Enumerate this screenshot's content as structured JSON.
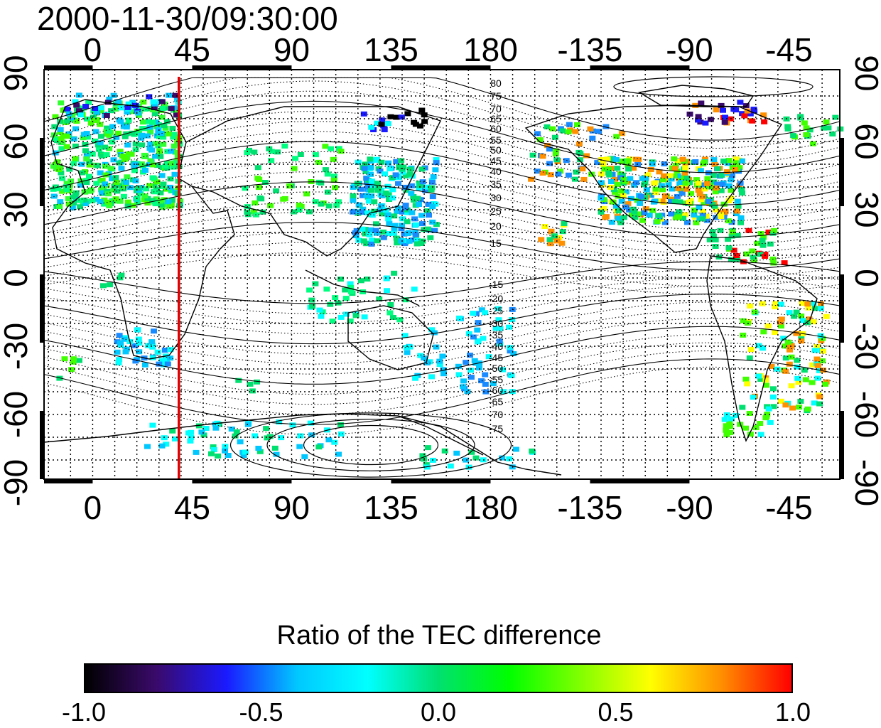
{
  "title": "2000-11-30/09:30:00",
  "map": {
    "x_ticks": [
      "0",
      "45",
      "90",
      "135",
      "180",
      "-135",
      "-90",
      "-45"
    ],
    "y_ticks": [
      "90",
      "60",
      "30",
      "0",
      "-30",
      "-60",
      "-90"
    ],
    "contour_labels_north": [
      "80",
      "75",
      "70",
      "65",
      "60",
      "55",
      "50",
      "45",
      "40",
      "35",
      "30",
      "25",
      "20",
      "15"
    ],
    "contour_labels_south": [
      "-15",
      "-20",
      "-25",
      "-30",
      "-35",
      "-40",
      "-45",
      "-50",
      "-55",
      "-60",
      "-65",
      "-70",
      "-75"
    ],
    "south_cap_labels": [
      "70",
      "75"
    ],
    "terminator_longitude": 39,
    "terminator_color": "#e00000"
  },
  "colorbar": {
    "title": "Ratio of the TEC difference",
    "tick_labels": [
      "-1.0",
      "-0.5",
      "0.0",
      "0.5",
      "1.0"
    ],
    "range": [
      -1.0,
      1.0
    ],
    "colors": [
      "#000000",
      "#3a0a6a",
      "#1a1aff",
      "#00c8ff",
      "#00ffff",
      "#00e070",
      "#00ff00",
      "#80ff00",
      "#ffff00",
      "#ff9000",
      "#ff0000"
    ]
  }
}
